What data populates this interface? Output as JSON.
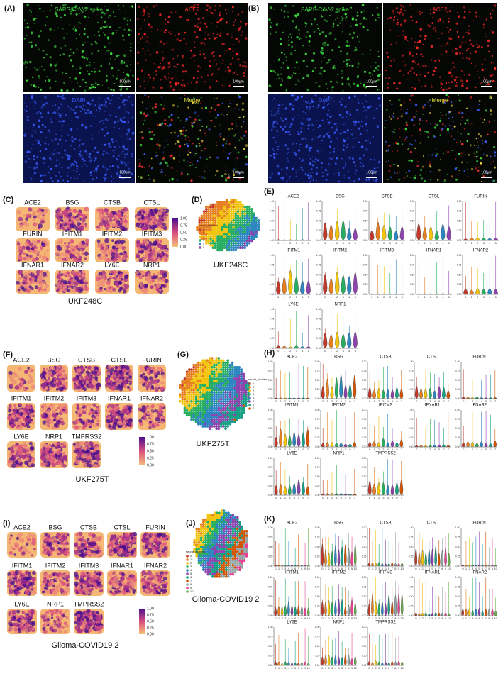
{
  "panels": {
    "A": {
      "label": "(A)",
      "channels": [
        "SARS-CoV-2 spike",
        "ACE2",
        "DAPI",
        "Merge"
      ],
      "scale_bar": "100μm"
    },
    "B": {
      "label": "(B)",
      "channels": [
        "SARS-CoV-2 spike",
        "ACE2",
        "DAPI",
        "Merge"
      ],
      "scale_bar": "100μm"
    },
    "C": {
      "label": "(C)",
      "genes": [
        "ACE2",
        "BSG",
        "CTSB",
        "CTSL",
        "FURIN",
        "IFITM1",
        "IFITM2",
        "IFITM3",
        "IFNAR1",
        "IFNAR2",
        "LY6E",
        "NRP1"
      ],
      "colorbar_ticks": [
        "0.00",
        "0.25",
        "0.50",
        "0.75",
        "1.00"
      ],
      "sample": "UKF248C"
    },
    "D": {
      "label": "(D)",
      "legend_title": "seurat_clusters",
      "clusters": [
        "0",
        "1",
        "2",
        "3",
        "4",
        "5"
      ],
      "sample": "UKF248C"
    },
    "E": {
      "label": "(E)",
      "genes": [
        "ACE2",
        "BSG",
        "CTSB",
        "CTSL",
        "FURIN",
        "IFITM1",
        "IFITM2",
        "IFITM3",
        "IFNAR1",
        "IFNAR2",
        "LY6E",
        "NRP1"
      ],
      "y_ticks": [
        "0.00",
        "0.25",
        "0.50",
        "0.75",
        "1.00"
      ],
      "clusters": [
        "0",
        "1",
        "2",
        "3",
        "4",
        "5"
      ]
    },
    "F": {
      "label": "(F)",
      "genes": [
        "ACE2",
        "BSG",
        "CTSB",
        "CTSL",
        "FURIN",
        "IFITM1",
        "IFITM2",
        "IFITM3",
        "IFNAR1",
        "IFNAR2",
        "LY6E",
        "NRP1",
        "TMPRSS2"
      ],
      "colorbar_ticks": [
        "0.00",
        "0.25",
        "0.50",
        "0.75",
        "1.00"
      ],
      "sample": "UKF275T"
    },
    "G": {
      "label": "(G)",
      "legend_title": "seurat_clusters",
      "clusters": [
        "0",
        "1",
        "2",
        "3",
        "4",
        "5",
        "6",
        "7"
      ],
      "sample": "UKF275T"
    },
    "H": {
      "label": "(H)",
      "genes": [
        "ACE2",
        "BSG",
        "CTSB",
        "CTSL",
        "FURIN",
        "IFITM1",
        "IFITM2",
        "IFITM3",
        "IFNAR1",
        "IFNAR2",
        "LY6E",
        "NRP1",
        "TMPRSS2"
      ],
      "y_ticks": [
        "0.00",
        "0.25",
        "0.50",
        "0.75",
        "1.00"
      ],
      "clusters": [
        "0",
        "1",
        "2",
        "3",
        "4",
        "5",
        "6",
        "7"
      ]
    },
    "I": {
      "label": "(I)",
      "genes": [
        "ACE2",
        "BSG",
        "CTSB",
        "CTSL",
        "FURIN",
        "IFITM1",
        "IFITM2",
        "IFITM3",
        "IFNAR1",
        "IFNAR2",
        "LY6E",
        "NRP1",
        "TMPRSS2"
      ],
      "colorbar_ticks": [
        "0.00",
        "0.25",
        "0.50",
        "0.75",
        "1.00"
      ],
      "sample": "Glioma-COVID19 2"
    },
    "J": {
      "label": "(J)",
      "legend_title": "seurat_clusters",
      "clusters": [
        "0",
        "1",
        "2",
        "3",
        "4",
        "5",
        "6",
        "7",
        "8",
        "9",
        "10"
      ],
      "sample": "Glioma-COVID19 2"
    },
    "K": {
      "label": "(K)",
      "genes": [
        "ACE2",
        "BSG",
        "CTSB",
        "CTSL",
        "FURIN",
        "IFITM1",
        "IFITM2",
        "IFITM3",
        "IFNAR1",
        "IFNAR2",
        "LY6E",
        "NRP1",
        "TMPRSS2"
      ],
      "y_ticks": [
        "0.00",
        "0.25",
        "0.50",
        "0.75",
        "1.00"
      ],
      "clusters": [
        "0",
        "1",
        "2",
        "3",
        "4",
        "5",
        "6",
        "7",
        "8",
        "9",
        "10"
      ]
    }
  }
}
